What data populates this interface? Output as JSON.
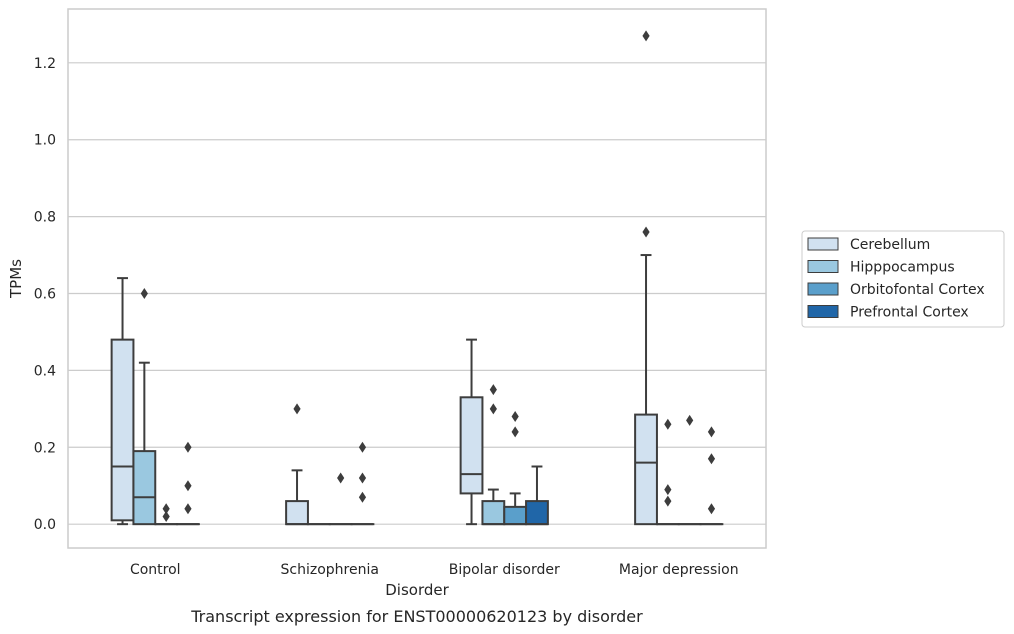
{
  "caption": "Transcript expression for ENST00000620123 by disorder",
  "chart_data": {
    "type": "box",
    "xlabel": "Disorder",
    "ylabel": "TPMs",
    "categories": [
      "Control",
      "Schizophrenia",
      "Bipolar disorder",
      "Major depression"
    ],
    "ylim": [
      -0.062,
      1.34
    ],
    "yticks": [
      0.0,
      0.2,
      0.4,
      0.6,
      0.8,
      1.0,
      1.2
    ],
    "ytick_labels": [
      "0.0",
      "0.2",
      "0.4",
      "0.6",
      "0.8",
      "1.0",
      "1.2"
    ],
    "grid": "horizontal",
    "legend_position": "right",
    "series": [
      {
        "name": "Cerebellum",
        "color": "#d1e1f0",
        "boxes": [
          {
            "category": "Control",
            "whisker_low": 0.0,
            "q1": 0.01,
            "median": 0.15,
            "q3": 0.48,
            "whisker_high": 0.64,
            "outliers": []
          },
          {
            "category": "Schizophrenia",
            "whisker_low": 0.0,
            "q1": 0.0,
            "median": 0.0,
            "q3": 0.06,
            "whisker_high": 0.14,
            "outliers": [
              0.3
            ]
          },
          {
            "category": "Bipolar disorder",
            "whisker_low": 0.0,
            "q1": 0.08,
            "median": 0.13,
            "q3": 0.33,
            "whisker_high": 0.48,
            "outliers": []
          },
          {
            "category": "Major depression",
            "whisker_low": 0.0,
            "q1": 0.0,
            "median": 0.16,
            "q3": 0.285,
            "whisker_high": 0.7,
            "outliers": [
              0.76,
              1.27
            ]
          }
        ]
      },
      {
        "name": "Hipppocampus",
        "color": "#9ac8e0",
        "boxes": [
          {
            "category": "Control",
            "whisker_low": 0.0,
            "q1": 0.0,
            "median": 0.07,
            "q3": 0.19,
            "whisker_high": 0.42,
            "outliers": [
              0.6
            ]
          },
          {
            "category": "Schizophrenia",
            "whisker_low": 0.0,
            "q1": 0.0,
            "median": 0.0,
            "q3": 0.0,
            "whisker_high": 0.0,
            "outliers": []
          },
          {
            "category": "Bipolar disorder",
            "whisker_low": 0.0,
            "q1": 0.0,
            "median": 0.0,
            "q3": 0.06,
            "whisker_high": 0.09,
            "outliers": [
              0.3,
              0.35
            ]
          },
          {
            "category": "Major depression",
            "whisker_low": 0.0,
            "q1": 0.0,
            "median": 0.0,
            "q3": 0.0,
            "whisker_high": 0.0,
            "outliers": [
              0.06,
              0.09,
              0.26
            ]
          }
        ]
      },
      {
        "name": "Orbitofontal Cortex",
        "color": "#5a9fcb",
        "boxes": [
          {
            "category": "Control",
            "whisker_low": 0.0,
            "q1": 0.0,
            "median": 0.0,
            "q3": 0.0,
            "whisker_high": 0.0,
            "outliers": [
              0.02,
              0.04
            ]
          },
          {
            "category": "Schizophrenia",
            "whisker_low": 0.0,
            "q1": 0.0,
            "median": 0.0,
            "q3": 0.0,
            "whisker_high": 0.0,
            "outliers": [
              0.12
            ]
          },
          {
            "category": "Bipolar disorder",
            "whisker_low": 0.0,
            "q1": 0.0,
            "median": 0.0,
            "q3": 0.045,
            "whisker_high": 0.08,
            "outliers": [
              0.24,
              0.28
            ]
          },
          {
            "category": "Major depression",
            "whisker_low": 0.0,
            "q1": 0.0,
            "median": 0.0,
            "q3": 0.0,
            "whisker_high": 0.0,
            "outliers": [
              0.27
            ]
          }
        ]
      },
      {
        "name": "Prefrontal Cortex",
        "color": "#2066a8",
        "boxes": [
          {
            "category": "Control",
            "whisker_low": 0.0,
            "q1": 0.0,
            "median": 0.0,
            "q3": 0.0,
            "whisker_high": 0.0,
            "outliers": [
              0.04,
              0.1,
              0.2
            ]
          },
          {
            "category": "Schizophrenia",
            "whisker_low": 0.0,
            "q1": 0.0,
            "median": 0.0,
            "q3": 0.0,
            "whisker_high": 0.0,
            "outliers": [
              0.07,
              0.12,
              0.2
            ]
          },
          {
            "category": "Bipolar disorder",
            "whisker_low": 0.0,
            "q1": 0.0,
            "median": 0.0,
            "q3": 0.06,
            "whisker_high": 0.15,
            "outliers": []
          },
          {
            "category": "Major depression",
            "whisker_low": 0.0,
            "q1": 0.0,
            "median": 0.0,
            "q3": 0.0,
            "whisker_high": 0.0,
            "outliers": [
              0.04,
              0.17,
              0.24
            ]
          }
        ]
      }
    ]
  }
}
